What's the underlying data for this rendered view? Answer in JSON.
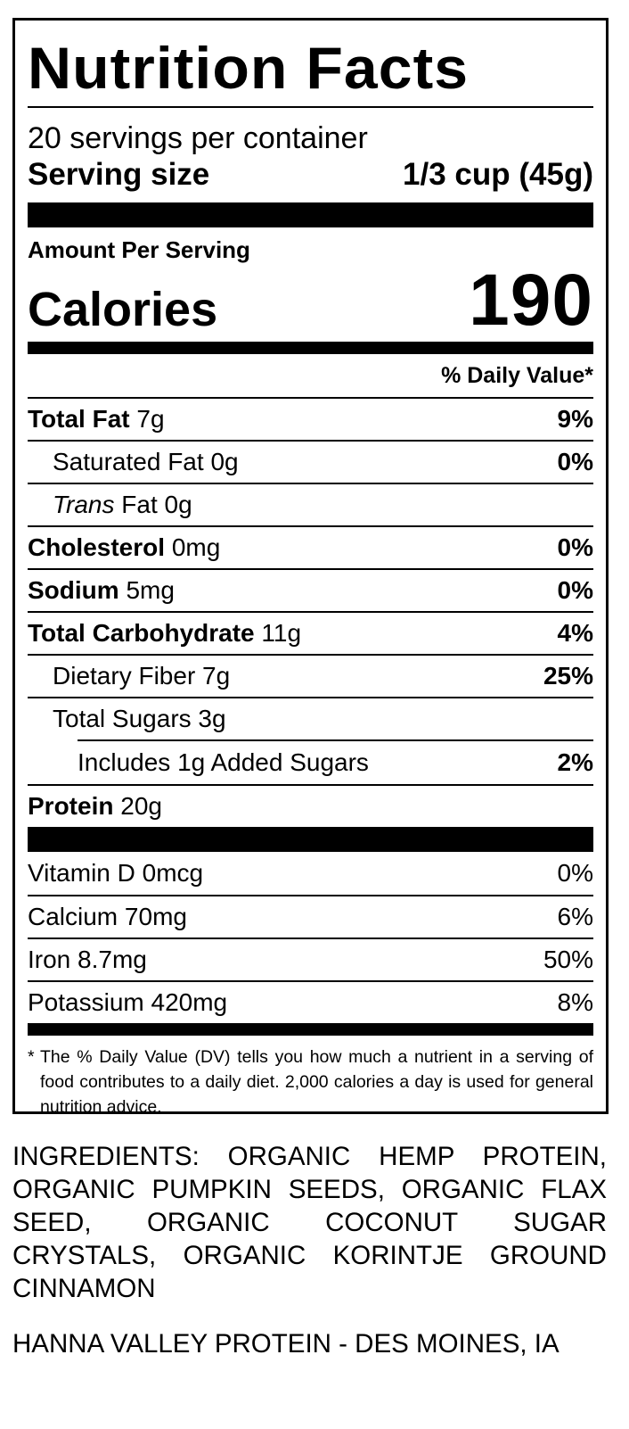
{
  "label": {
    "title": "Nutrition Facts",
    "servings_per_container": "20 servings per container",
    "serving_size_label": "Serving size",
    "serving_size_value": "1/3 cup (45g)",
    "amount_per_serving": "Amount Per Serving",
    "calories_label": "Calories",
    "calories_value": "190",
    "daily_value_header": "% Daily Value*",
    "nutrients": [
      {
        "name": "Total Fat",
        "amount": "7g",
        "dv": "9%"
      },
      {
        "name": "Saturated Fat",
        "amount": "0g",
        "dv": "0%"
      },
      {
        "name": "Trans",
        "name_suffix": "Fat",
        "amount": "0g",
        "dv": ""
      },
      {
        "name": "Cholesterol",
        "amount": "0mg",
        "dv": "0%"
      },
      {
        "name": "Sodium",
        "amount": "5mg",
        "dv": "0%"
      },
      {
        "name": "Total Carbohydrate",
        "amount": "11g",
        "dv": "4%"
      },
      {
        "name": "Dietary Fiber",
        "amount": "7g",
        "dv": "25%"
      },
      {
        "name": "Total Sugars",
        "amount": "3g",
        "dv": ""
      },
      {
        "name": "Includes 1g Added Sugars",
        "amount": "",
        "dv": "2%"
      },
      {
        "name": "Protein",
        "amount": "20g",
        "dv": ""
      }
    ],
    "vitamins": [
      {
        "name": "Vitamin D",
        "amount": "0mcg",
        "dv": "0%"
      },
      {
        "name": "Calcium",
        "amount": "70mg",
        "dv": "6%"
      },
      {
        "name": "Iron",
        "amount": "8.7mg",
        "dv": "50%"
      },
      {
        "name": "Potassium",
        "amount": "420mg",
        "dv": "8%"
      }
    ],
    "footnote_star": "*",
    "footnote": "The % Daily Value (DV) tells you how much a nutrient in a serving of food contributes to a daily diet. 2,000 calories a day is used for general nutrition advice."
  },
  "ingredients": "INGREDIENTS: ORGANIC HEMP PROTEIN, ORGANIC PUMPKIN SEEDS, ORGANIC FLAX SEED, ORGANIC COCONUT SUGAR CRYSTALS, ORGANIC KORINTJE GROUND CINNAMON",
  "manufacturer": "HANNA VALLEY PROTEIN - DES MOINES, IA"
}
